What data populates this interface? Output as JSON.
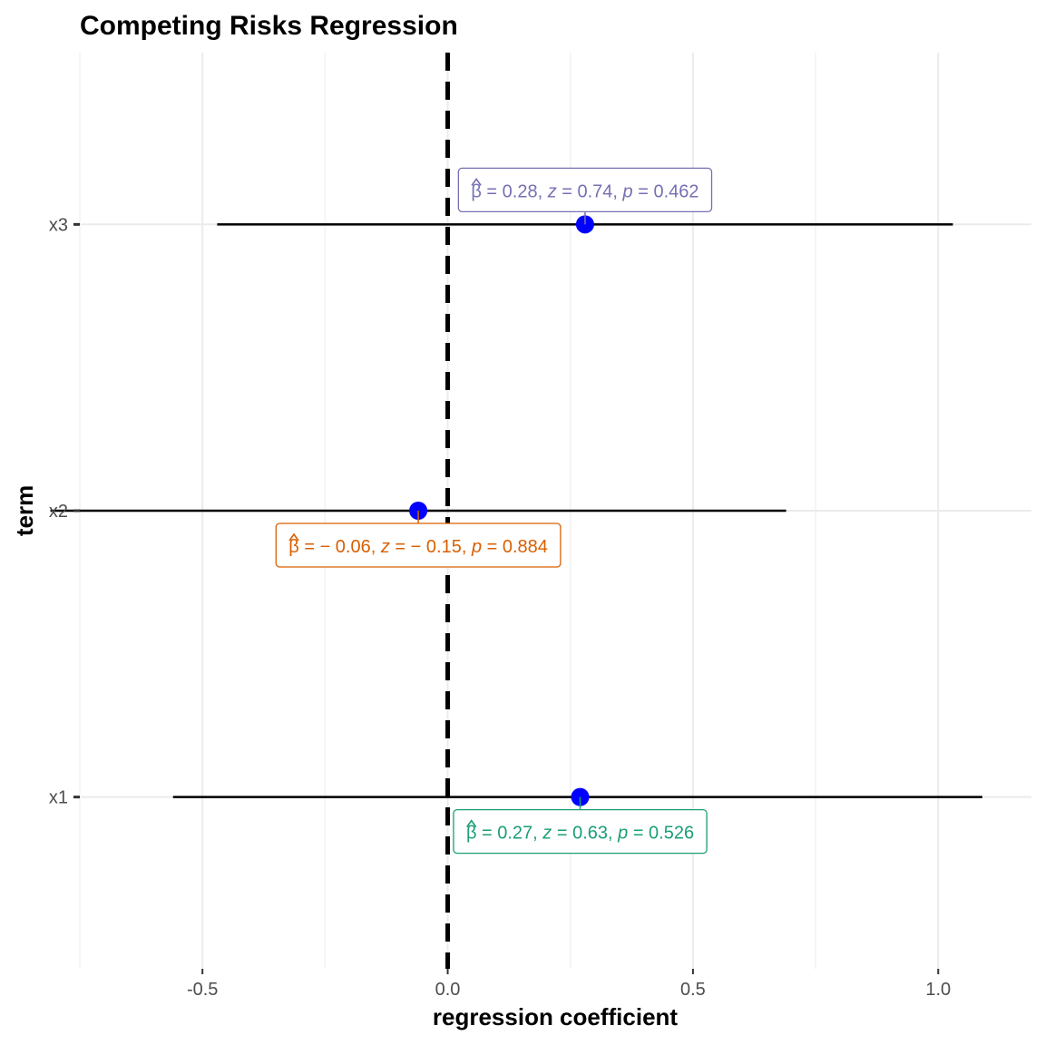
{
  "chart_data": {
    "type": "forest",
    "title": "Competing Risks Regression",
    "xlabel": "regression coefficient",
    "ylabel": "term",
    "xlim": [
      -0.75,
      1.19
    ],
    "x_ticks": [
      -0.5,
      0.0,
      0.5,
      1.0
    ],
    "x_tick_labels": [
      "-0.5",
      "0.0",
      "0.5",
      "1.0"
    ],
    "x_minor_ticks": [
      -0.75,
      -0.25,
      0.25,
      0.75
    ],
    "reference_line": 0.0,
    "grid": true,
    "point_color": "#0000ff",
    "terms": [
      {
        "term": "x3",
        "estimate": 0.28,
        "conf_low": -0.47,
        "conf_high": 1.03,
        "label_color": "#7570b3",
        "label_position": "above",
        "label": {
          "beta": "0.28",
          "z": "0.74",
          "p": "0.462"
        }
      },
      {
        "term": "x2",
        "estimate": -0.06,
        "conf_low": -0.81,
        "conf_high": 0.69,
        "label_color": "#d95f02",
        "label_position": "below",
        "label": {
          "beta": "− 0.06",
          "z": "− 0.15",
          "p": "0.884"
        }
      },
      {
        "term": "x1",
        "estimate": 0.27,
        "conf_low": -0.56,
        "conf_high": 1.09,
        "label_color": "#1b9e77",
        "label_position": "below",
        "label": {
          "beta": "0.27",
          "z": "0.63",
          "p": "0.526"
        }
      }
    ]
  }
}
